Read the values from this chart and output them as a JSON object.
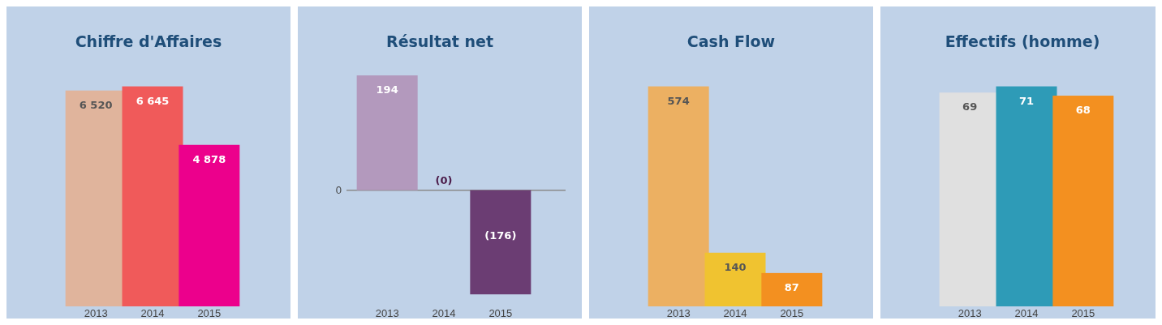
{
  "chart_data": [
    {
      "type": "bar",
      "title": "Chiffre d'Affaires",
      "categories": [
        "2013",
        "2014",
        "2015"
      ],
      "values": [
        6520,
        6645,
        4878
      ],
      "colors": [
        "#e0b49c",
        "#f05a5a",
        "#ec008c"
      ],
      "value_labels": [
        "6 520",
        "6 645",
        "4 878"
      ]
    },
    {
      "type": "bar",
      "title": "Résultat net",
      "categories": [
        "2013",
        "2014",
        "2015"
      ],
      "values": [
        194,
        0,
        -176
      ],
      "colors": [
        "#b399bd",
        "#8a2a7a",
        "#6b3d73"
      ],
      "value_labels": [
        "194",
        "(0)",
        "(176)"
      ],
      "ref_lines": [
        {
          "axis": "y",
          "value": 0,
          "label": "0",
          "color": "#8a8a8a"
        }
      ]
    },
    {
      "type": "bar",
      "title": "Cash Flow",
      "categories": [
        "2013",
        "2014",
        "2015"
      ],
      "values": [
        574,
        140,
        87
      ],
      "colors": [
        "#ecb062",
        "#f0c330",
        "#f39020"
      ],
      "data_labels": true
    },
    {
      "type": "bar",
      "title": "Effectifs (homme)",
      "categories": [
        "2013",
        "2014",
        "2015"
      ],
      "values": [
        69,
        71,
        68
      ],
      "colors": [
        "#e0e0e0",
        "#2e9bb7",
        "#f39020"
      ],
      "data_labels": true
    }
  ]
}
